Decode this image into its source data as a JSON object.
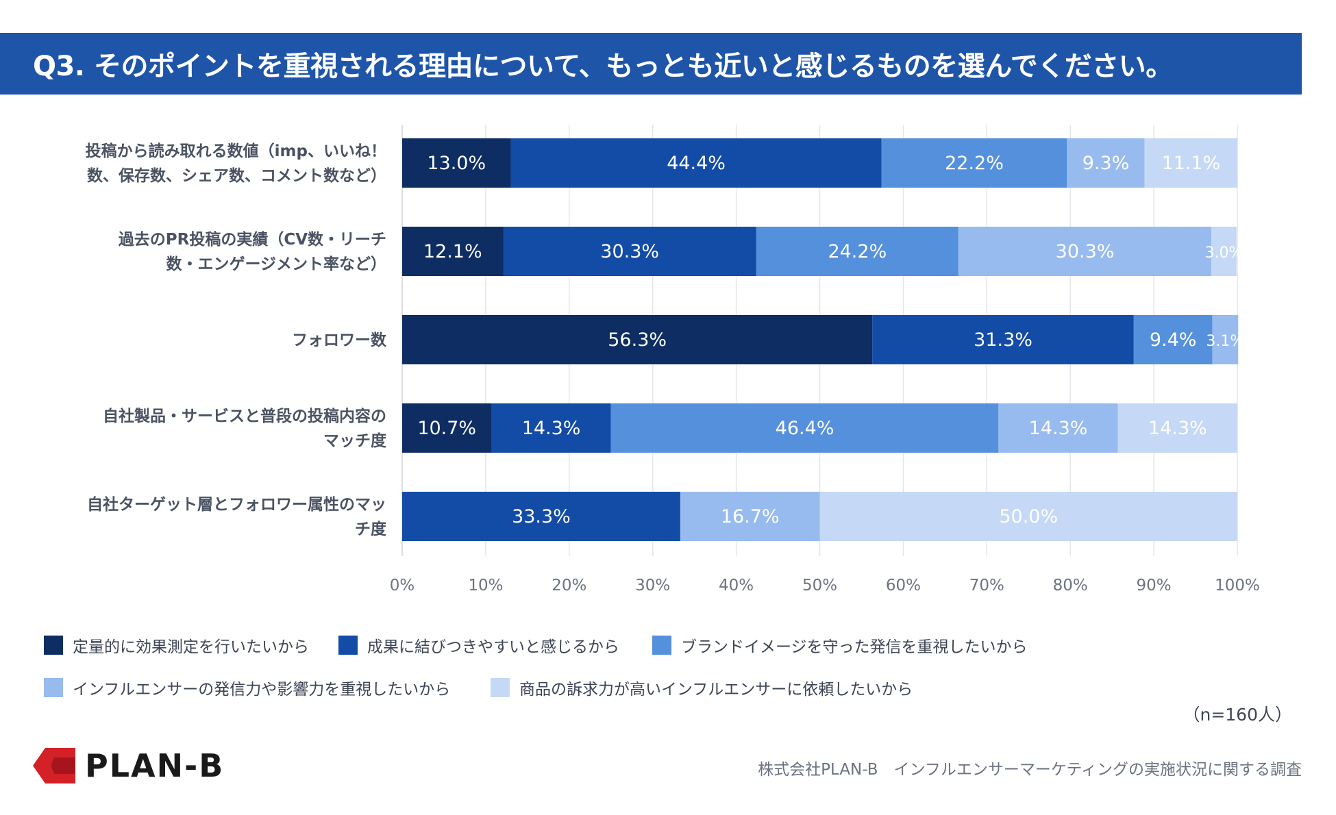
{
  "title": "Q3. そのポイントを重視される理由について、もっとも近いと感じるものを選んでください。",
  "chart_data": {
    "type": "bar",
    "orientation": "horizontal",
    "stacked": true,
    "categories": [
      [
        "投稿から読み取れる数値（imp、いいね！",
        "数、保存数、シェア数、コメント数など）"
      ],
      [
        "過去のPR投稿の実績（CV数・リーチ",
        "数・エンゲージメント率など）"
      ],
      [
        "フォロワー数"
      ],
      [
        "自社製品・サービスと普段の投稿内容の",
        "マッチ度"
      ],
      [
        "自社ターゲット層とフォロワー属性のマッ",
        "チ度"
      ]
    ],
    "series": [
      {
        "name": "定量的に効果測定を行いたいから",
        "color": "#0d2d63",
        "label_color": "#ffffff",
        "values": [
          13.0,
          12.1,
          56.3,
          10.7,
          0
        ]
      },
      {
        "name": "成果に結びつきやすいと感じるから",
        "color": "#134ca6",
        "label_color": "#ffffff",
        "values": [
          44.4,
          30.3,
          31.3,
          14.3,
          33.3
        ]
      },
      {
        "name": "ブランドイメージを守った発信を重視したいから",
        "color": "#5590dd",
        "label_color": "#ffffff",
        "values": [
          22.2,
          24.2,
          9.4,
          46.4,
          0
        ]
      },
      {
        "name": "インフルエンサーの発信力や影響力を重視したいから",
        "color": "#97bbee",
        "label_color": "#ffffff",
        "values": [
          9.3,
          30.3,
          3.1,
          14.3,
          16.7
        ]
      },
      {
        "name": "商品の訴求力が高いインフルエンサーに依頼したいから",
        "color": "#c5d8f5",
        "label_color": "#ffffff",
        "values": [
          11.1,
          3.0,
          0,
          14.3,
          50.0
        ]
      }
    ],
    "value_suffix": "%",
    "xlim": [
      0,
      100
    ],
    "xticks": [
      "0%",
      "10%",
      "20%",
      "30%",
      "40%",
      "50%",
      "60%",
      "70%",
      "80%",
      "90%",
      "100%"
    ],
    "grid": true,
    "legend_position": "bottom"
  },
  "sample_note": "（n=160人）",
  "logo_text": "PLAN-B",
  "source": "株式会社PLAN-B　インフルエンサーマーケティングの実施状況に関する調査",
  "colors": {
    "title_bg": "#1e55a8",
    "logo_red": "#d42027",
    "logo_dark": "#a8141b"
  }
}
